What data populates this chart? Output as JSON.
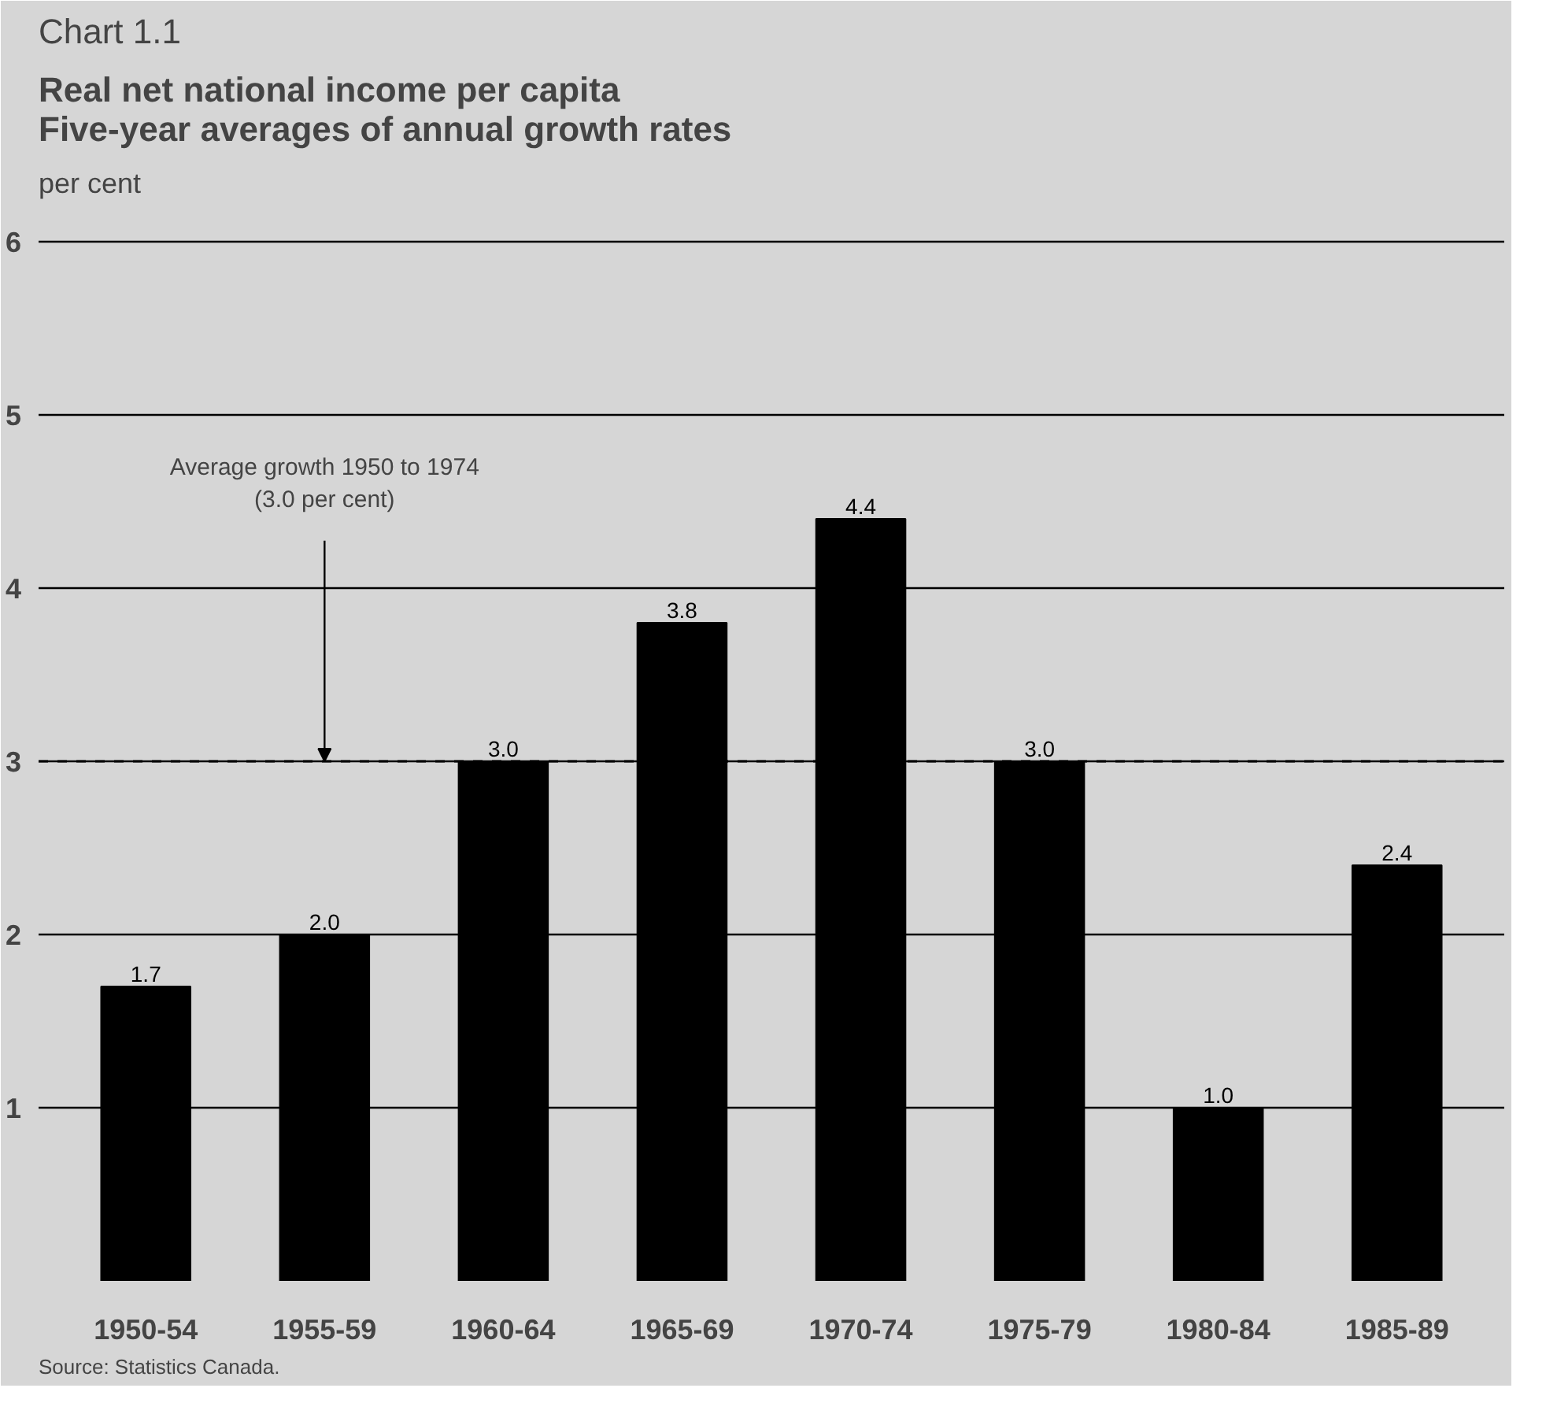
{
  "chart_data": {
    "type": "bar",
    "title": "Chart 1.1",
    "subtitle": "Real net national income per capita\nFive-year averages of annual growth rates",
    "ylabel": "per cent",
    "categories": [
      "1950-54",
      "1955-59",
      "1960-64",
      "1965-69",
      "1970-74",
      "1975-79",
      "1980-84",
      "1985-89"
    ],
    "values": [
      1.7,
      2.0,
      3.0,
      3.8,
      4.4,
      3.0,
      1.0,
      2.4
    ],
    "value_labels": [
      "1.7",
      "2.0",
      "3.0",
      "3.8",
      "4.4",
      "3.0",
      "1.0",
      "2.4"
    ],
    "color": "#000000",
    "ylim": [
      0,
      6.2
    ],
    "yticks": [
      {
        "value": 0,
        "label": null
      },
      1,
      2,
      3,
      4,
      5,
      6
    ],
    "grid": "y",
    "ref_lines": [
      {
        "axis": "y",
        "value": 3.0,
        "line_style": "dashed",
        "color": "#000000"
      }
    ],
    "annotations": [
      {
        "text": "Average growth 1950 to 1974\n(3.0 per cent)",
        "x": "1955-59",
        "y": 3.0
      },
      "Source: Statistics Canada."
    ]
  }
}
